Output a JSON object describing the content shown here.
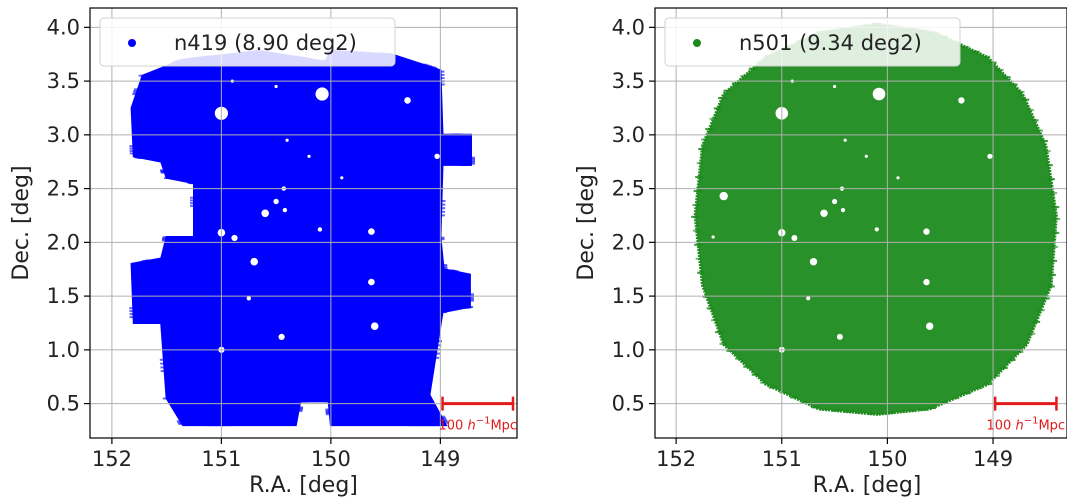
{
  "chart_data": [
    {
      "type": "scatter",
      "xlabel": "R.A. [deg]",
      "ylabel": "Dec. [deg]",
      "xlim": [
        152.2,
        148.3
      ],
      "ylim": [
        0.18,
        4.18
      ],
      "xticks": [
        152,
        151,
        150,
        149
      ],
      "yticks": [
        0.5,
        1.0,
        1.5,
        2.0,
        2.5,
        3.0,
        3.5,
        4.0
      ],
      "grid": true,
      "legend_position": "top-left",
      "series": [
        {
          "name": "n419 (8.90 deg2)",
          "color": "#0000ff",
          "marker": "dot"
        }
      ],
      "footprint": {
        "shape": "square-with-notches",
        "ra_range": [
          148.75,
          151.8
        ],
        "dec_range": [
          0.3,
          3.8
        ],
        "outline": [
          [
            151.72,
            3.55
          ],
          [
            151.35,
            3.7
          ],
          [
            150.65,
            3.78
          ],
          [
            150.05,
            3.68
          ],
          [
            150.0,
            3.78
          ],
          [
            149.45,
            3.75
          ],
          [
            149.0,
            3.6
          ],
          [
            148.98,
            3.0
          ],
          [
            148.72,
            3.0
          ],
          [
            148.72,
            2.72
          ],
          [
            148.98,
            2.72
          ],
          [
            149.0,
            2.05
          ],
          [
            148.97,
            1.75
          ],
          [
            148.73,
            1.7
          ],
          [
            148.73,
            1.4
          ],
          [
            148.98,
            1.35
          ],
          [
            149.1,
            0.58
          ],
          [
            148.95,
            0.3
          ],
          [
            150.0,
            0.3
          ],
          [
            150.02,
            0.52
          ],
          [
            150.28,
            0.52
          ],
          [
            150.32,
            0.3
          ],
          [
            151.35,
            0.3
          ],
          [
            151.5,
            0.55
          ],
          [
            151.55,
            1.25
          ],
          [
            151.8,
            1.25
          ],
          [
            151.82,
            1.8
          ],
          [
            151.55,
            1.85
          ],
          [
            151.5,
            2.05
          ],
          [
            151.25,
            2.05
          ],
          [
            151.25,
            2.55
          ],
          [
            151.5,
            2.6
          ],
          [
            151.55,
            2.75
          ],
          [
            151.8,
            2.8
          ],
          [
            151.82,
            3.25
          ]
        ],
        "masked_stars": [
          [
            151.0,
            3.2,
            0.06
          ],
          [
            150.08,
            3.38,
            0.06
          ],
          [
            149.3,
            3.32,
            0.03
          ],
          [
            149.03,
            2.8,
            0.025
          ],
          [
            151.55,
            2.43,
            0.04
          ],
          [
            150.43,
            2.5,
            0.02
          ],
          [
            150.5,
            2.38,
            0.025
          ],
          [
            150.42,
            2.3,
            0.02
          ],
          [
            150.6,
            2.27,
            0.035
          ],
          [
            151.0,
            2.09,
            0.035
          ],
          [
            150.88,
            2.04,
            0.028
          ],
          [
            150.1,
            2.12,
            0.02
          ],
          [
            149.63,
            2.1,
            0.03
          ],
          [
            150.7,
            1.82,
            0.035
          ],
          [
            149.63,
            1.63,
            0.03
          ],
          [
            150.75,
            1.48,
            0.02
          ],
          [
            149.6,
            1.22,
            0.035
          ],
          [
            150.45,
            1.12,
            0.028
          ],
          [
            151.0,
            1.0,
            0.028
          ],
          [
            150.4,
            2.95,
            0.015
          ],
          [
            150.2,
            2.8,
            0.015
          ],
          [
            149.9,
            2.6,
            0.015
          ],
          [
            150.9,
            3.5,
            0.015
          ],
          [
            150.5,
            3.45,
            0.015
          ]
        ]
      },
      "scale_bar": {
        "label": "100 h^-1 Mpc",
        "dec": 0.5,
        "ra_start": 148.98,
        "ra_end": 148.33
      }
    },
    {
      "type": "scatter",
      "xlabel": "R.A. [deg]",
      "ylabel": "Dec. [deg]",
      "xlim": [
        152.2,
        148.3
      ],
      "ylim": [
        0.18,
        4.18
      ],
      "xticks": [
        152,
        151,
        150,
        149
      ],
      "yticks": [
        0.5,
        1.0,
        1.5,
        2.0,
        2.5,
        3.0,
        3.5,
        4.0
      ],
      "grid": true,
      "legend_position": "top-left",
      "series": [
        {
          "name": "n501 (9.34 deg2)",
          "color": "#1e8b1e",
          "marker": "dot"
        }
      ],
      "footprint": {
        "shape": "circle",
        "center": [
          150.1,
          2.2
        ],
        "radius_deg": 1.8,
        "dec_range": [
          0.4,
          4.05
        ],
        "outline": [
          [
            150.1,
            4.03
          ],
          [
            149.55,
            3.95
          ],
          [
            149.05,
            3.72
          ],
          [
            148.72,
            3.38
          ],
          [
            148.5,
            2.9
          ],
          [
            148.4,
            2.25
          ],
          [
            148.45,
            1.6
          ],
          [
            148.68,
            1.05
          ],
          [
            149.05,
            0.68
          ],
          [
            149.6,
            0.45
          ],
          [
            150.1,
            0.4
          ],
          [
            150.65,
            0.45
          ],
          [
            151.15,
            0.68
          ],
          [
            151.55,
            1.05
          ],
          [
            151.75,
            1.6
          ],
          [
            151.82,
            2.25
          ],
          [
            151.75,
            2.9
          ],
          [
            151.55,
            3.38
          ],
          [
            151.15,
            3.72
          ],
          [
            150.65,
            3.95
          ]
        ],
        "masked_stars": [
          [
            151.0,
            3.2,
            0.06
          ],
          [
            150.08,
            3.38,
            0.06
          ],
          [
            149.3,
            3.32,
            0.03
          ],
          [
            149.03,
            2.8,
            0.025
          ],
          [
            151.55,
            2.43,
            0.04
          ],
          [
            150.43,
            2.5,
            0.02
          ],
          [
            150.5,
            2.38,
            0.025
          ],
          [
            150.42,
            2.3,
            0.02
          ],
          [
            150.6,
            2.27,
            0.035
          ],
          [
            151.0,
            2.09,
            0.035
          ],
          [
            150.88,
            2.04,
            0.028
          ],
          [
            150.1,
            2.12,
            0.02
          ],
          [
            149.63,
            2.1,
            0.03
          ],
          [
            150.7,
            1.82,
            0.035
          ],
          [
            149.63,
            1.63,
            0.03
          ],
          [
            150.75,
            1.48,
            0.02
          ],
          [
            149.6,
            1.22,
            0.035
          ],
          [
            150.45,
            1.12,
            0.028
          ],
          [
            151.0,
            1.0,
            0.028
          ],
          [
            150.4,
            2.95,
            0.015
          ],
          [
            150.2,
            2.8,
            0.015
          ],
          [
            149.9,
            2.6,
            0.015
          ],
          [
            150.9,
            3.5,
            0.015
          ],
          [
            150.5,
            3.45,
            0.015
          ],
          [
            151.65,
            2.05,
            0.015
          ]
        ]
      },
      "scale_bar": {
        "label": "100 h^-1 Mpc",
        "dec": 0.5,
        "ra_start": 148.98,
        "ra_end": 148.4
      }
    }
  ]
}
